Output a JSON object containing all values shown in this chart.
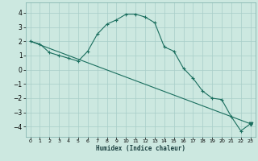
{
  "xlabel": "Humidex (Indice chaleur)",
  "bg_color": "#cce8e0",
  "grid_color": "#a8cec8",
  "line_color": "#1a6e5e",
  "curve1_x": [
    0,
    1,
    2,
    3,
    4,
    5,
    6,
    7,
    8,
    9,
    10,
    11,
    12,
    13,
    14,
    15,
    16,
    17,
    18,
    19,
    20,
    21,
    22,
    23
  ],
  "curve1_y": [
    2.0,
    1.8,
    1.2,
    1.0,
    0.8,
    0.6,
    1.3,
    2.5,
    3.2,
    3.5,
    3.9,
    3.9,
    3.7,
    3.3,
    1.6,
    1.3,
    0.1,
    -0.6,
    -1.5,
    -2.0,
    -2.1,
    -3.3,
    -4.3,
    -3.8
  ],
  "curve2_x": [
    0,
    23
  ],
  "curve2_y": [
    2.0,
    -3.8
  ],
  "xlim": [
    -0.5,
    23.5
  ],
  "ylim": [
    -4.7,
    4.7
  ],
  "yticks": [
    -4,
    -3,
    -2,
    -1,
    0,
    1,
    2,
    3,
    4
  ],
  "xticks": [
    0,
    1,
    2,
    3,
    4,
    5,
    6,
    7,
    8,
    9,
    10,
    11,
    12,
    13,
    14,
    15,
    16,
    17,
    18,
    19,
    20,
    21,
    22,
    23
  ]
}
